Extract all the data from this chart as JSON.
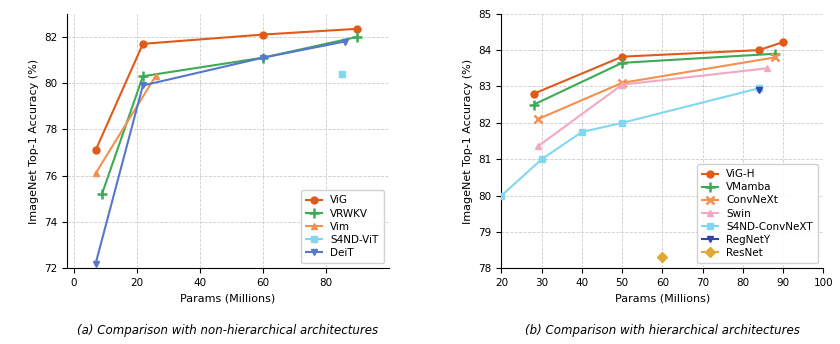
{
  "left_plot": {
    "title": "(a) Comparison with non-hierarchical architectures",
    "xlabel": "Params (Millions)",
    "ylabel": "ImageNet Top-1 Accuracy (%)",
    "xlim": [
      -2,
      100
    ],
    "ylim": [
      72,
      83
    ],
    "yticks": [
      72,
      74,
      76,
      78,
      80,
      82
    ],
    "xticks": [
      0,
      20,
      40,
      60,
      80
    ],
    "series": [
      {
        "label": "ViG",
        "color": "#e05a1a",
        "marker": "o",
        "markersize": 5,
        "linewidth": 1.5,
        "x": [
          7,
          22,
          60,
          90
        ],
        "y": [
          77.1,
          81.7,
          82.1,
          82.35
        ]
      },
      {
        "label": "VRWKV",
        "color": "#3daa55",
        "marker": "+",
        "markersize": 7,
        "linewidth": 1.5,
        "x": [
          9,
          22,
          60,
          90
        ],
        "y": [
          75.2,
          80.3,
          81.1,
          82.0
        ]
      },
      {
        "label": "Vim",
        "color": "#f49050",
        "marker": "^",
        "markersize": 5,
        "linewidth": 1.5,
        "x": [
          7,
          26
        ],
        "y": [
          76.1,
          80.3
        ]
      },
      {
        "label": "S4ND-ViT",
        "color": "#80d8f0",
        "marker": "s",
        "markersize": 5,
        "linewidth": 1.5,
        "x": [
          85
        ],
        "y": [
          80.4
        ]
      },
      {
        "label": "DeiT",
        "color": "#5577cc",
        "marker": "v",
        "markersize": 5,
        "linewidth": 1.5,
        "x": [
          7,
          22,
          60,
          86
        ],
        "y": [
          72.2,
          79.9,
          81.1,
          81.8
        ]
      }
    ]
  },
  "right_plot": {
    "title": "(b) Comparison with hierarchical architectures",
    "xlabel": "Params (Millions)",
    "ylabel": "ImageNet Top-1 Accuracy (%)",
    "xlim": [
      20,
      100
    ],
    "ylim": [
      78,
      85
    ],
    "yticks": [
      78,
      79,
      80,
      81,
      82,
      83,
      84,
      85
    ],
    "xticks": [
      20,
      30,
      40,
      50,
      60,
      70,
      80,
      90,
      100
    ],
    "series": [
      {
        "label": "ViG-H",
        "color": "#e05a1a",
        "marker": "o",
        "markersize": 5,
        "linewidth": 1.5,
        "x": [
          28,
          50,
          84,
          90
        ],
        "y": [
          82.8,
          83.82,
          84.0,
          84.22
        ]
      },
      {
        "label": "VMamba",
        "color": "#3daa55",
        "marker": "+",
        "markersize": 7,
        "linewidth": 1.5,
        "x": [
          28,
          50,
          88
        ],
        "y": [
          82.5,
          83.65,
          83.9
        ]
      },
      {
        "label": "ConvNeXt",
        "color": "#f49050",
        "marker": "x",
        "markersize": 6,
        "linewidth": 1.5,
        "x": [
          29,
          50,
          88
        ],
        "y": [
          82.1,
          83.1,
          83.8
        ]
      },
      {
        "label": "Swin",
        "color": "#f4a8c0",
        "marker": "^",
        "markersize": 5,
        "linewidth": 1.5,
        "x": [
          29,
          50,
          86
        ],
        "y": [
          81.35,
          83.05,
          83.5
        ]
      },
      {
        "label": "S4ND-ConvNeXT",
        "color": "#80d8f0",
        "marker": "s",
        "markersize": 4,
        "linewidth": 1.5,
        "x": [
          20,
          30,
          40,
          50,
          84
        ],
        "y": [
          80.0,
          81.0,
          81.75,
          82.0,
          82.95
        ]
      },
      {
        "label": "RegNetY",
        "color": "#3344aa",
        "marker": "v",
        "markersize": 5,
        "linewidth": 1.5,
        "x": [
          84
        ],
        "y": [
          82.9
        ]
      },
      {
        "label": "ResNet",
        "color": "#ddaa33",
        "marker": "D",
        "markersize": 5,
        "linewidth": 1.5,
        "x": [
          60
        ],
        "y": [
          78.3
        ]
      }
    ]
  },
  "background_color": "#ffffff",
  "grid_color": "#cccccc",
  "fig_width": 8.4,
  "fig_height": 3.44,
  "dpi": 100
}
